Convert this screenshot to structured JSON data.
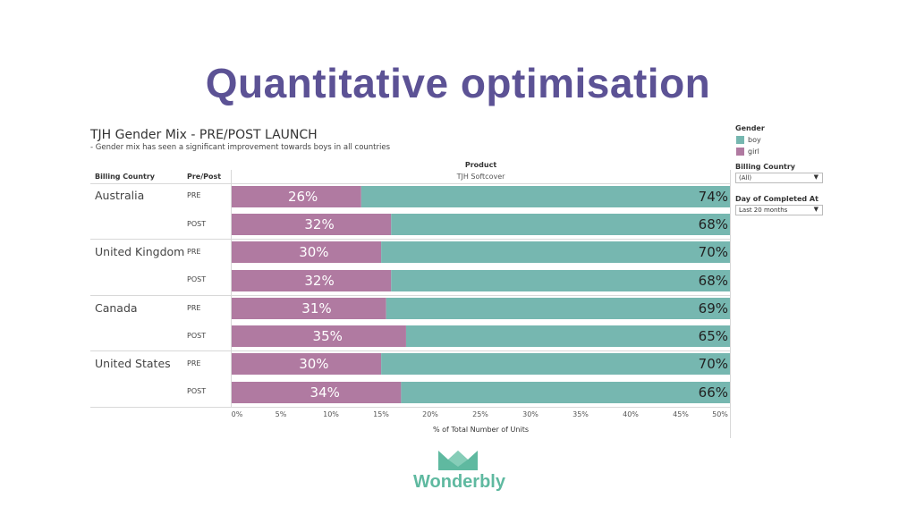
{
  "slide": {
    "title": "Quantitative optimisation"
  },
  "viz": {
    "title": "TJH Gender Mix - PRE/POST LAUNCH",
    "subtitle": "- Gender mix has seen a significant improvement towards boys in all countries",
    "col_header_country": "Billing Country",
    "col_header_prepost": "Pre/Post",
    "product_header": "Product",
    "product_value": "TJH Softcover"
  },
  "legend": {
    "gender_title": "Gender",
    "items": [
      {
        "label": "boy",
        "color": "#76b7b0"
      },
      {
        "label": "girl",
        "color": "#b07aa1"
      }
    ],
    "filters": [
      {
        "title": "Billing Country",
        "value": "(All)"
      },
      {
        "title": "Day of Completed At",
        "value": "Last 20 months"
      }
    ]
  },
  "chart_data": {
    "type": "bar",
    "orientation": "horizontal",
    "stacked": true,
    "xlabel": "% of Total Number of Units",
    "xlim": [
      0,
      50
    ],
    "x_ticks": [
      "0%",
      "5%",
      "10%",
      "15%",
      "20%",
      "25%",
      "30%",
      "35%",
      "40%",
      "45%",
      "50%"
    ],
    "groups": [
      {
        "country": "Australia",
        "rows": [
          {
            "period": "PRE",
            "girl": 26,
            "boy": 74,
            "girl_label": "26%",
            "boy_label": "74%"
          },
          {
            "period": "POST",
            "girl": 32,
            "boy": 68,
            "girl_label": "32%",
            "boy_label": "68%"
          }
        ]
      },
      {
        "country": "United Kingdom",
        "rows": [
          {
            "period": "PRE",
            "girl": 30,
            "boy": 70,
            "girl_label": "30%",
            "boy_label": "70%"
          },
          {
            "period": "POST",
            "girl": 32,
            "boy": 68,
            "girl_label": "32%",
            "boy_label": "68%"
          }
        ]
      },
      {
        "country": "Canada",
        "rows": [
          {
            "period": "PRE",
            "girl": 31,
            "boy": 69,
            "girl_label": "31%",
            "boy_label": "69%"
          },
          {
            "period": "POST",
            "girl": 35,
            "boy": 65,
            "girl_label": "35%",
            "boy_label": "65%"
          }
        ]
      },
      {
        "country": "United States",
        "rows": [
          {
            "period": "PRE",
            "girl": 30,
            "boy": 70,
            "girl_label": "30%",
            "boy_label": "70%"
          },
          {
            "period": "POST",
            "girl": 34,
            "boy": 66,
            "girl_label": "34%",
            "boy_label": "66%"
          }
        ]
      }
    ],
    "colors": {
      "girl": "#b07aa1",
      "boy": "#76b7b0"
    }
  },
  "brand": {
    "name": "Wonderbly",
    "color": "#5fb9a0"
  }
}
